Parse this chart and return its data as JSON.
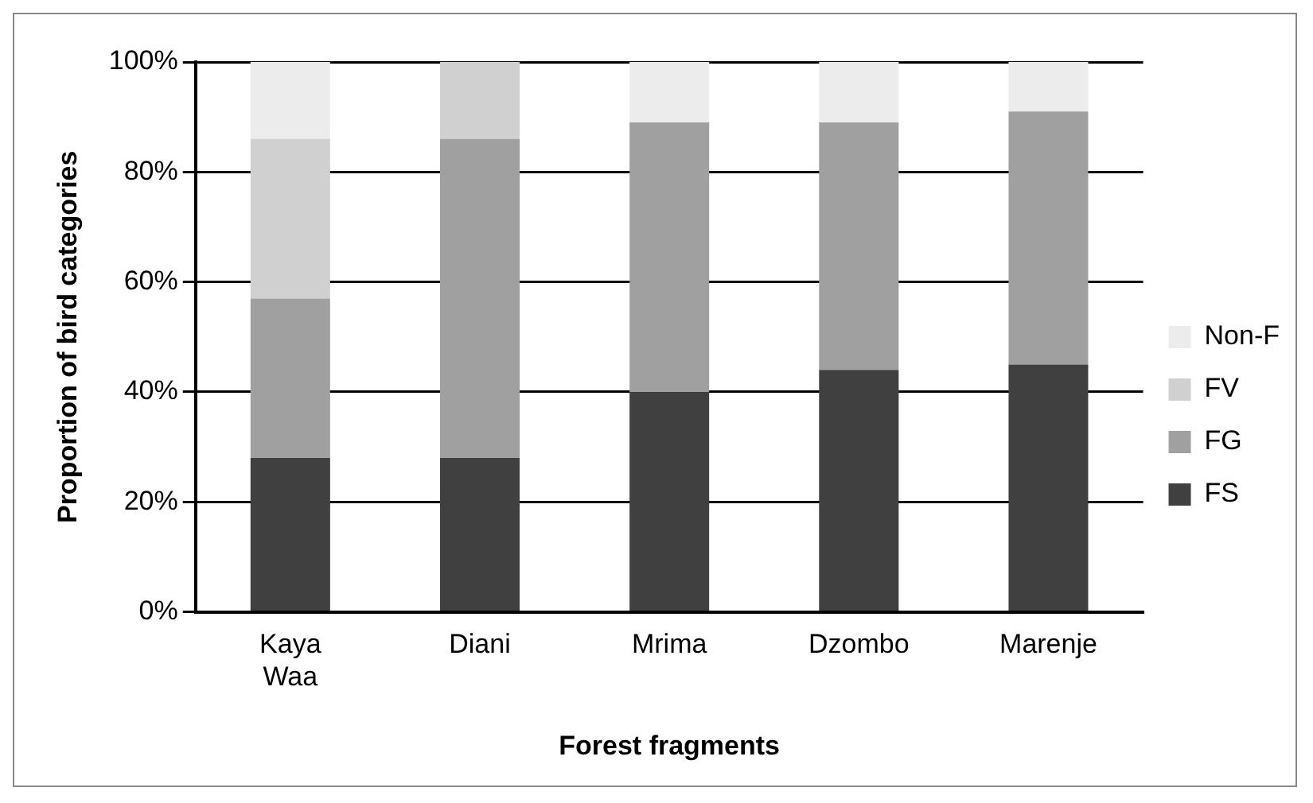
{
  "chart_data": {
    "type": "bar",
    "stacked": true,
    "xlabel": "Forest fragments",
    "ylabel": "Proportion of bird categories",
    "categories": [
      "Kaya Waa",
      "Diani",
      "Mrima",
      "Dzombo",
      "Marenje"
    ],
    "series": [
      {
        "name": "FS",
        "color": "#404040",
        "values": [
          28,
          28,
          40,
          44,
          45
        ]
      },
      {
        "name": "FG",
        "color": "#a0a0a0",
        "values": [
          29,
          58,
          49,
          45,
          46
        ]
      },
      {
        "name": "FV",
        "color": "#d0d0d0",
        "values": [
          29,
          14,
          0,
          0,
          0
        ]
      },
      {
        "name": "Non-F",
        "color": "#ececec",
        "values": [
          14,
          0,
          11,
          11,
          9
        ]
      }
    ],
    "ylim": [
      0,
      100
    ],
    "yticks": [
      {
        "value": 0,
        "label": "0%"
      },
      {
        "value": 20,
        "label": "20%"
      },
      {
        "value": 40,
        "label": "40%"
      },
      {
        "value": 60,
        "label": "60%"
      },
      {
        "value": 80,
        "label": "80%"
      },
      {
        "value": 100,
        "label": "100%"
      }
    ],
    "grid": "y",
    "legend": "right"
  }
}
